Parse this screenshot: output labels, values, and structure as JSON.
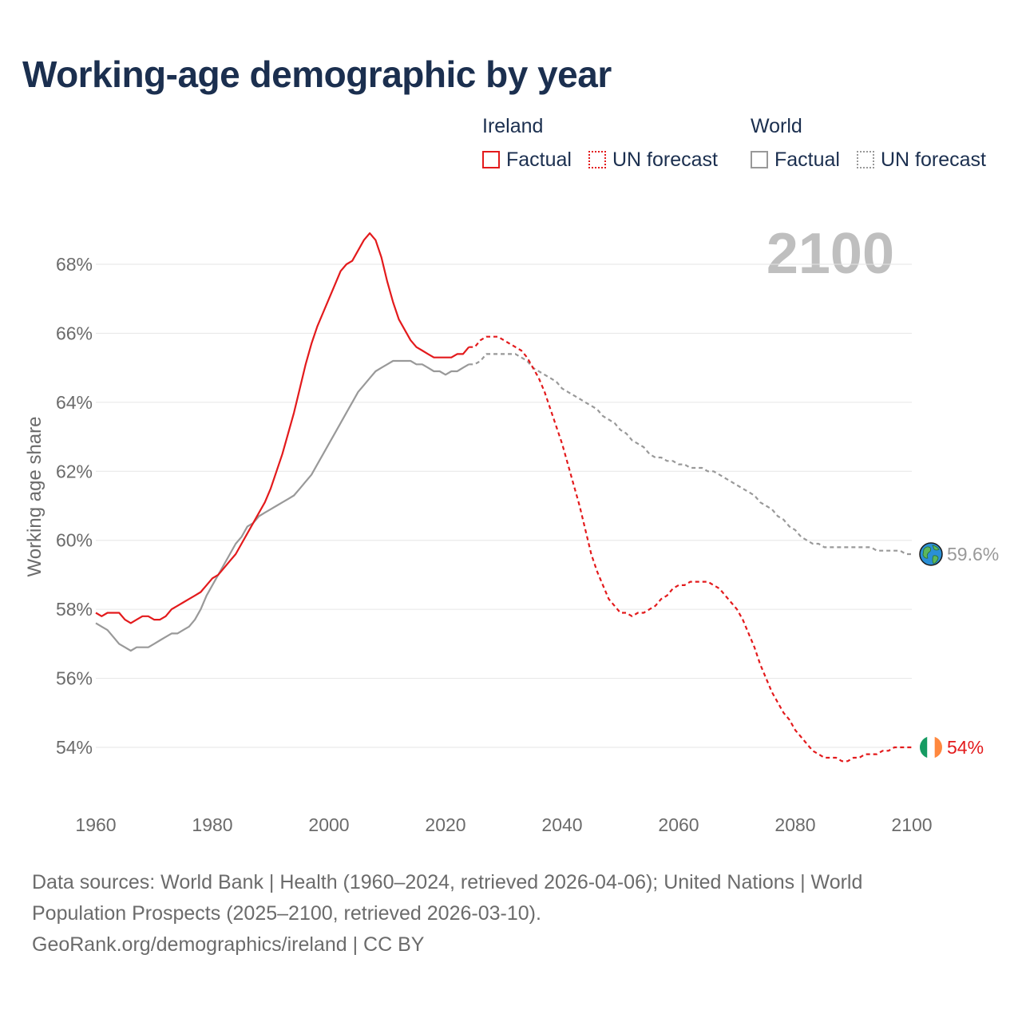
{
  "title": "Working-age demographic by year",
  "legend": {
    "ireland_title": "Ireland",
    "world_title": "World",
    "factual_label": "Factual",
    "forecast_label": "UN forecast"
  },
  "colors": {
    "ireland": "#e31a1c",
    "world": "#999999",
    "title": "#1b2f4f",
    "grid": "#e6e6e6",
    "year_watermark": "#bfbfbf"
  },
  "source": {
    "line1": "Data sources: World Bank | Health (1960–2024, retrieved 2026-04-06); United Nations | World",
    "line2": "Population Prospects (2025–2100, retrieved 2026-03-10).",
    "line3": "GeoRank.org/demographics/ireland | CC BY"
  },
  "chart_data": {
    "type": "line",
    "title": "Working-age demographic by year",
    "xlabel": "",
    "ylabel": "Working age share",
    "xlim": [
      1960,
      2100
    ],
    "ylim": [
      53,
      69.5
    ],
    "x_ticks": [
      1960,
      1980,
      2000,
      2020,
      2040,
      2060,
      2080,
      2100
    ],
    "y_ticks": [
      54,
      56,
      58,
      60,
      62,
      64,
      66,
      68
    ],
    "y_tick_suffix": "%",
    "grid": true,
    "year_watermark": "2100",
    "factual_end_year": 2024,
    "series": [
      {
        "name": "Ireland",
        "end_label": "54%",
        "end_icon": "ireland-flag-icon",
        "points": [
          [
            1960,
            57.9
          ],
          [
            1961,
            57.8
          ],
          [
            1962,
            57.9
          ],
          [
            1963,
            57.9
          ],
          [
            1964,
            57.9
          ],
          [
            1965,
            57.7
          ],
          [
            1966,
            57.6
          ],
          [
            1967,
            57.7
          ],
          [
            1968,
            57.8
          ],
          [
            1969,
            57.8
          ],
          [
            1970,
            57.7
          ],
          [
            1971,
            57.7
          ],
          [
            1972,
            57.8
          ],
          [
            1973,
            58.0
          ],
          [
            1974,
            58.1
          ],
          [
            1975,
            58.2
          ],
          [
            1976,
            58.3
          ],
          [
            1977,
            58.4
          ],
          [
            1978,
            58.5
          ],
          [
            1979,
            58.7
          ],
          [
            1980,
            58.9
          ],
          [
            1981,
            59.0
          ],
          [
            1982,
            59.2
          ],
          [
            1983,
            59.4
          ],
          [
            1984,
            59.6
          ],
          [
            1985,
            59.9
          ],
          [
            1986,
            60.2
          ],
          [
            1987,
            60.5
          ],
          [
            1988,
            60.8
          ],
          [
            1989,
            61.1
          ],
          [
            1990,
            61.5
          ],
          [
            1991,
            62.0
          ],
          [
            1992,
            62.5
          ],
          [
            1993,
            63.1
          ],
          [
            1994,
            63.7
          ],
          [
            1995,
            64.4
          ],
          [
            1996,
            65.1
          ],
          [
            1997,
            65.7
          ],
          [
            1998,
            66.2
          ],
          [
            1999,
            66.6
          ],
          [
            2000,
            67.0
          ],
          [
            2001,
            67.4
          ],
          [
            2002,
            67.8
          ],
          [
            2003,
            68.0
          ],
          [
            2004,
            68.1
          ],
          [
            2005,
            68.4
          ],
          [
            2006,
            68.7
          ],
          [
            2007,
            68.9
          ],
          [
            2008,
            68.7
          ],
          [
            2009,
            68.2
          ],
          [
            2010,
            67.5
          ],
          [
            2011,
            66.9
          ],
          [
            2012,
            66.4
          ],
          [
            2013,
            66.1
          ],
          [
            2014,
            65.8
          ],
          [
            2015,
            65.6
          ],
          [
            2016,
            65.5
          ],
          [
            2017,
            65.4
          ],
          [
            2018,
            65.3
          ],
          [
            2019,
            65.3
          ],
          [
            2020,
            65.3
          ],
          [
            2021,
            65.3
          ],
          [
            2022,
            65.4
          ],
          [
            2023,
            65.4
          ],
          [
            2024,
            65.6
          ],
          [
            2025,
            65.6
          ],
          [
            2026,
            65.8
          ],
          [
            2027,
            65.9
          ],
          [
            2028,
            65.9
          ],
          [
            2029,
            65.9
          ],
          [
            2030,
            65.8
          ],
          [
            2031,
            65.7
          ],
          [
            2032,
            65.6
          ],
          [
            2033,
            65.5
          ],
          [
            2034,
            65.3
          ],
          [
            2035,
            65.0
          ],
          [
            2036,
            64.7
          ],
          [
            2037,
            64.3
          ],
          [
            2038,
            63.8
          ],
          [
            2039,
            63.3
          ],
          [
            2040,
            62.8
          ],
          [
            2041,
            62.2
          ],
          [
            2042,
            61.6
          ],
          [
            2043,
            61.0
          ],
          [
            2044,
            60.3
          ],
          [
            2045,
            59.6
          ],
          [
            2046,
            59.1
          ],
          [
            2047,
            58.7
          ],
          [
            2048,
            58.3
          ],
          [
            2049,
            58.1
          ],
          [
            2050,
            57.9
          ],
          [
            2051,
            57.9
          ],
          [
            2052,
            57.8
          ],
          [
            2053,
            57.9
          ],
          [
            2054,
            57.9
          ],
          [
            2055,
            58.0
          ],
          [
            2056,
            58.1
          ],
          [
            2057,
            58.3
          ],
          [
            2058,
            58.4
          ],
          [
            2059,
            58.6
          ],
          [
            2060,
            58.7
          ],
          [
            2061,
            58.7
          ],
          [
            2062,
            58.8
          ],
          [
            2063,
            58.8
          ],
          [
            2064,
            58.8
          ],
          [
            2065,
            58.8
          ],
          [
            2066,
            58.7
          ],
          [
            2067,
            58.6
          ],
          [
            2068,
            58.4
          ],
          [
            2069,
            58.2
          ],
          [
            2070,
            58.0
          ],
          [
            2071,
            57.7
          ],
          [
            2072,
            57.3
          ],
          [
            2073,
            56.9
          ],
          [
            2074,
            56.4
          ],
          [
            2075,
            56.0
          ],
          [
            2076,
            55.6
          ],
          [
            2077,
            55.3
          ],
          [
            2078,
            55.0
          ],
          [
            2079,
            54.8
          ],
          [
            2080,
            54.5
          ],
          [
            2081,
            54.3
          ],
          [
            2082,
            54.1
          ],
          [
            2083,
            53.9
          ],
          [
            2084,
            53.8
          ],
          [
            2085,
            53.7
          ],
          [
            2086,
            53.7
          ],
          [
            2087,
            53.7
          ],
          [
            2088,
            53.6
          ],
          [
            2089,
            53.6
          ],
          [
            2090,
            53.7
          ],
          [
            2091,
            53.7
          ],
          [
            2092,
            53.8
          ],
          [
            2093,
            53.8
          ],
          [
            2094,
            53.8
          ],
          [
            2095,
            53.9
          ],
          [
            2096,
            53.9
          ],
          [
            2097,
            54.0
          ],
          [
            2098,
            54.0
          ],
          [
            2099,
            54.0
          ],
          [
            2100,
            54.0
          ]
        ]
      },
      {
        "name": "World",
        "end_label": "59.6%",
        "end_icon": "globe-icon",
        "points": [
          [
            1960,
            57.6
          ],
          [
            1961,
            57.5
          ],
          [
            1962,
            57.4
          ],
          [
            1963,
            57.2
          ],
          [
            1964,
            57.0
          ],
          [
            1965,
            56.9
          ],
          [
            1966,
            56.8
          ],
          [
            1967,
            56.9
          ],
          [
            1968,
            56.9
          ],
          [
            1969,
            56.9
          ],
          [
            1970,
            57.0
          ],
          [
            1971,
            57.1
          ],
          [
            1972,
            57.2
          ],
          [
            1973,
            57.3
          ],
          [
            1974,
            57.3
          ],
          [
            1975,
            57.4
          ],
          [
            1976,
            57.5
          ],
          [
            1977,
            57.7
          ],
          [
            1978,
            58.0
          ],
          [
            1979,
            58.4
          ],
          [
            1980,
            58.7
          ],
          [
            1981,
            59.0
          ],
          [
            1982,
            59.3
          ],
          [
            1983,
            59.6
          ],
          [
            1984,
            59.9
          ],
          [
            1985,
            60.1
          ],
          [
            1986,
            60.4
          ],
          [
            1987,
            60.5
          ],
          [
            1988,
            60.7
          ],
          [
            1989,
            60.8
          ],
          [
            1990,
            60.9
          ],
          [
            1991,
            61.0
          ],
          [
            1992,
            61.1
          ],
          [
            1993,
            61.2
          ],
          [
            1994,
            61.3
          ],
          [
            1995,
            61.5
          ],
          [
            1996,
            61.7
          ],
          [
            1997,
            61.9
          ],
          [
            1998,
            62.2
          ],
          [
            1999,
            62.5
          ],
          [
            2000,
            62.8
          ],
          [
            2001,
            63.1
          ],
          [
            2002,
            63.4
          ],
          [
            2003,
            63.7
          ],
          [
            2004,
            64.0
          ],
          [
            2005,
            64.3
          ],
          [
            2006,
            64.5
          ],
          [
            2007,
            64.7
          ],
          [
            2008,
            64.9
          ],
          [
            2009,
            65.0
          ],
          [
            2010,
            65.1
          ],
          [
            2011,
            65.2
          ],
          [
            2012,
            65.2
          ],
          [
            2013,
            65.2
          ],
          [
            2014,
            65.2
          ],
          [
            2015,
            65.1
          ],
          [
            2016,
            65.1
          ],
          [
            2017,
            65.0
          ],
          [
            2018,
            64.9
          ],
          [
            2019,
            64.9
          ],
          [
            2020,
            64.8
          ],
          [
            2021,
            64.9
          ],
          [
            2022,
            64.9
          ],
          [
            2023,
            65.0
          ],
          [
            2024,
            65.1
          ],
          [
            2025,
            65.1
          ],
          [
            2026,
            65.2
          ],
          [
            2027,
            65.4
          ],
          [
            2028,
            65.4
          ],
          [
            2029,
            65.4
          ],
          [
            2030,
            65.4
          ],
          [
            2031,
            65.4
          ],
          [
            2032,
            65.4
          ],
          [
            2033,
            65.3
          ],
          [
            2034,
            65.2
          ],
          [
            2035,
            65.0
          ],
          [
            2036,
            64.9
          ],
          [
            2037,
            64.8
          ],
          [
            2038,
            64.7
          ],
          [
            2039,
            64.6
          ],
          [
            2040,
            64.4
          ],
          [
            2041,
            64.3
          ],
          [
            2042,
            64.2
          ],
          [
            2043,
            64.1
          ],
          [
            2044,
            64.0
          ],
          [
            2045,
            63.9
          ],
          [
            2046,
            63.8
          ],
          [
            2047,
            63.6
          ],
          [
            2048,
            63.5
          ],
          [
            2049,
            63.4
          ],
          [
            2050,
            63.2
          ],
          [
            2051,
            63.1
          ],
          [
            2052,
            62.9
          ],
          [
            2053,
            62.8
          ],
          [
            2054,
            62.7
          ],
          [
            2055,
            62.5
          ],
          [
            2056,
            62.4
          ],
          [
            2057,
            62.4
          ],
          [
            2058,
            62.3
          ],
          [
            2059,
            62.3
          ],
          [
            2060,
            62.2
          ],
          [
            2061,
            62.2
          ],
          [
            2062,
            62.1
          ],
          [
            2063,
            62.1
          ],
          [
            2064,
            62.1
          ],
          [
            2065,
            62.0
          ],
          [
            2066,
            62.0
          ],
          [
            2067,
            61.9
          ],
          [
            2068,
            61.8
          ],
          [
            2069,
            61.7
          ],
          [
            2070,
            61.6
          ],
          [
            2071,
            61.5
          ],
          [
            2072,
            61.4
          ],
          [
            2073,
            61.3
          ],
          [
            2074,
            61.1
          ],
          [
            2075,
            61.0
          ],
          [
            2076,
            60.9
          ],
          [
            2077,
            60.7
          ],
          [
            2078,
            60.6
          ],
          [
            2079,
            60.4
          ],
          [
            2080,
            60.3
          ],
          [
            2081,
            60.1
          ],
          [
            2082,
            60.0
          ],
          [
            2083,
            59.9
          ],
          [
            2084,
            59.9
          ],
          [
            2085,
            59.8
          ],
          [
            2086,
            59.8
          ],
          [
            2087,
            59.8
          ],
          [
            2088,
            59.8
          ],
          [
            2089,
            59.8
          ],
          [
            2090,
            59.8
          ],
          [
            2091,
            59.8
          ],
          [
            2092,
            59.8
          ],
          [
            2093,
            59.8
          ],
          [
            2094,
            59.7
          ],
          [
            2095,
            59.7
          ],
          [
            2096,
            59.7
          ],
          [
            2097,
            59.7
          ],
          [
            2098,
            59.7
          ],
          [
            2099,
            59.6
          ],
          [
            2100,
            59.6
          ]
        ]
      }
    ]
  }
}
